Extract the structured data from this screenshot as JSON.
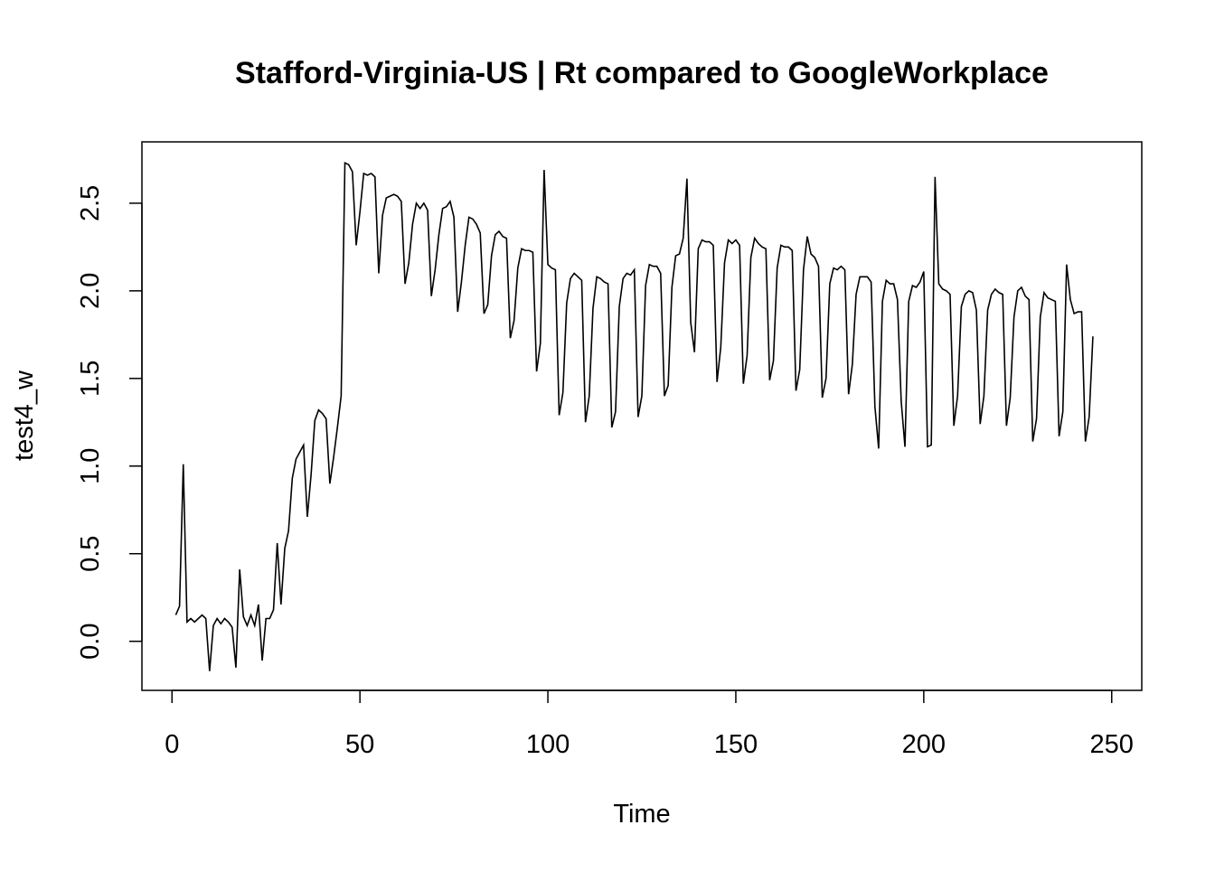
{
  "chart_data": {
    "type": "line",
    "title": "Stafford-Virginia-US | Rt compared to GoogleWorkplace",
    "xlabel": "Time",
    "ylabel": "test4_w",
    "xlim": [
      -8,
      258
    ],
    "ylim": [
      -0.28,
      2.85
    ],
    "x_ticks": [
      0,
      50,
      100,
      150,
      200,
      250
    ],
    "y_ticks": [
      0.0,
      0.5,
      1.0,
      1.5,
      2.0,
      2.5
    ],
    "x_tick_labels": [
      "0",
      "50",
      "100",
      "150",
      "200",
      "250"
    ],
    "y_tick_labels": [
      "0.0",
      "0.5",
      "1.0",
      "1.5",
      "2.0",
      "2.5"
    ],
    "grid": false,
    "line_color": "#000000",
    "series": [
      {
        "x_start": 1,
        "values": [
          0.15,
          0.2,
          1.01,
          0.11,
          0.13,
          0.11,
          0.13,
          0.15,
          0.13,
          -0.17,
          0.09,
          0.13,
          0.1,
          0.13,
          0.11,
          0.08,
          -0.15,
          0.41,
          0.14,
          0.09,
          0.15,
          0.09,
          0.21,
          -0.11,
          0.13,
          0.13,
          0.18,
          0.56,
          0.21,
          0.53,
          0.63,
          0.93,
          1.04,
          1.08,
          1.12,
          0.71,
          0.95,
          1.26,
          1.32,
          1.3,
          1.27,
          0.9,
          1.05,
          1.22,
          1.4,
          2.73,
          2.72,
          2.68,
          2.26,
          2.45,
          2.67,
          2.66,
          2.67,
          2.65,
          2.1,
          2.43,
          2.53,
          2.54,
          2.55,
          2.54,
          2.51,
          2.04,
          2.16,
          2.38,
          2.5,
          2.47,
          2.5,
          2.46,
          1.97,
          2.12,
          2.32,
          2.47,
          2.48,
          2.51,
          2.42,
          1.88,
          2.05,
          2.26,
          2.42,
          2.41,
          2.38,
          2.33,
          1.87,
          1.92,
          2.2,
          2.32,
          2.34,
          2.31,
          2.3,
          1.73,
          1.83,
          2.13,
          2.24,
          2.23,
          2.23,
          2.22,
          1.54,
          1.7,
          2.69,
          2.15,
          2.13,
          2.12,
          1.29,
          1.42,
          1.93,
          2.07,
          2.1,
          2.08,
          2.06,
          1.25,
          1.4,
          1.9,
          2.08,
          2.07,
          2.05,
          2.04,
          1.22,
          1.31,
          1.91,
          2.07,
          2.1,
          2.09,
          2.12,
          1.28,
          1.4,
          2.03,
          2.15,
          2.14,
          2.14,
          2.1,
          1.4,
          1.46,
          2.02,
          2.2,
          2.21,
          2.3,
          2.64,
          1.82,
          1.65,
          2.24,
          2.29,
          2.28,
          2.28,
          2.26,
          1.48,
          1.68,
          2.16,
          2.29,
          2.27,
          2.29,
          2.26,
          1.47,
          1.63,
          2.19,
          2.3,
          2.27,
          2.25,
          2.24,
          1.49,
          1.6,
          2.13,
          2.26,
          2.25,
          2.25,
          2.23,
          1.43,
          1.55,
          2.12,
          2.31,
          2.21,
          2.19,
          2.14,
          1.39,
          1.5,
          2.04,
          2.13,
          2.12,
          2.14,
          2.12,
          1.41,
          1.58,
          1.98,
          2.08,
          2.08,
          2.08,
          2.05,
          1.34,
          1.1,
          1.94,
          2.06,
          2.04,
          2.04,
          1.95,
          1.37,
          1.11,
          1.94,
          2.03,
          2.02,
          2.05,
          2.11,
          1.11,
          1.12,
          2.65,
          2.04,
          2.01,
          2.0,
          1.98,
          1.23,
          1.4,
          1.91,
          1.98,
          2.0,
          1.99,
          1.89,
          1.24,
          1.4,
          1.89,
          1.98,
          2.01,
          1.99,
          1.98,
          1.23,
          1.39,
          1.85,
          2.0,
          2.02,
          1.97,
          1.95,
          1.14,
          1.27,
          1.85,
          1.99,
          1.96,
          1.95,
          1.94,
          1.17,
          1.31,
          2.15,
          1.95,
          1.87,
          1.88,
          1.88,
          1.14,
          1.28,
          1.74
        ]
      }
    ]
  }
}
